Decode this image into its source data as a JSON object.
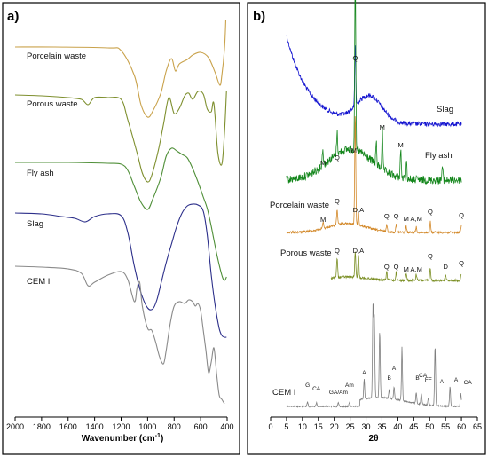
{
  "chart_data": [
    {
      "panel": "a)",
      "type": "line",
      "xlabel": "Wavenumber (cm",
      "xlabel_sup": "-1",
      "xlabel_close": ")",
      "x_ticks": [
        "2000",
        "1800",
        "1600",
        "1400",
        "1200",
        "1000",
        "800",
        "600",
        "400"
      ],
      "xlim": [
        2000,
        400
      ],
      "series": [
        {
          "name": "Porcelain waste",
          "color": "#c9a24b"
        },
        {
          "name": "Porous waste",
          "color": "#7e8f2e"
        },
        {
          "name": "Fly ash",
          "color": "#4f8f38"
        },
        {
          "name": "Slag",
          "color": "#2c2f8a"
        },
        {
          "name": "CEM I",
          "color": "#8a8a8a"
        }
      ]
    },
    {
      "panel": "b)",
      "type": "line",
      "xlabel": "2θ",
      "x_ticks": [
        "0",
        "5",
        "10",
        "15",
        "20",
        "25",
        "30",
        "35",
        "40",
        "45",
        "50",
        "55",
        "60",
        "65"
      ],
      "xlim": [
        0,
        65
      ],
      "series": [
        {
          "name": "Slag",
          "color": "#1515d0"
        },
        {
          "name": "Fly ash",
          "color": "#13861b"
        },
        {
          "name": "Porcelain waste",
          "color": "#d3892a"
        },
        {
          "name": "Porous waste",
          "color": "#7a8e23"
        },
        {
          "name": "CEM I",
          "color": "#7e7e7e"
        }
      ],
      "peak_labels": {
        "slag": [
          {
            "t": "Q",
            "x": 26.6
          }
        ],
        "flyash": [
          {
            "t": "M",
            "x": 16.5
          },
          {
            "t": "Q",
            "x": 20.9
          },
          {
            "t": "M",
            "x": 26.2
          },
          {
            "t": "M",
            "x": 35.1
          },
          {
            "t": "M",
            "x": 40.9
          }
        ],
        "porcelain": [
          {
            "t": "M",
            "x": 16.5
          },
          {
            "t": "Q",
            "x": 20.9
          },
          {
            "t": "D,A",
            "x": 27.6
          },
          {
            "t": "Q",
            "x": 36.5
          },
          {
            "t": "Q",
            "x": 39.5
          },
          {
            "t": "M",
            "x": 42.6
          },
          {
            "t": "A,M",
            "x": 45.8
          },
          {
            "t": "Q",
            "x": 50.2
          },
          {
            "t": "Q",
            "x": 60.0
          }
        ],
        "porous": [
          {
            "t": "Q",
            "x": 20.9
          },
          {
            "t": "D,A",
            "x": 27.6
          },
          {
            "t": "Q",
            "x": 36.5
          },
          {
            "t": "Q",
            "x": 39.5
          },
          {
            "t": "M",
            "x": 42.6
          },
          {
            "t": "A,M",
            "x": 45.8
          },
          {
            "t": "Q",
            "x": 50.2
          },
          {
            "t": "D",
            "x": 55.0
          },
          {
            "t": "Q",
            "x": 60.0
          }
        ],
        "cem": [
          {
            "t": "G",
            "x": 11.6
          },
          {
            "t": "CA",
            "x": 14.4
          },
          {
            "t": "GA/Am",
            "x": 21.3
          },
          {
            "t": "Am",
            "x": 24.8
          },
          {
            "t": "A",
            "x": 29.4
          },
          {
            "t": "B",
            "x": 37.3
          },
          {
            "t": "A",
            "x": 38.8
          },
          {
            "t": "B",
            "x": 46.2
          },
          {
            "t": "CA",
            "x": 47.9
          },
          {
            "t": "FF",
            "x": 49.6
          },
          {
            "t": "A",
            "x": 53.8
          },
          {
            "t": "A",
            "x": 58.3
          },
          {
            "t": "CA",
            "x": 62.0
          }
        ]
      }
    }
  ]
}
